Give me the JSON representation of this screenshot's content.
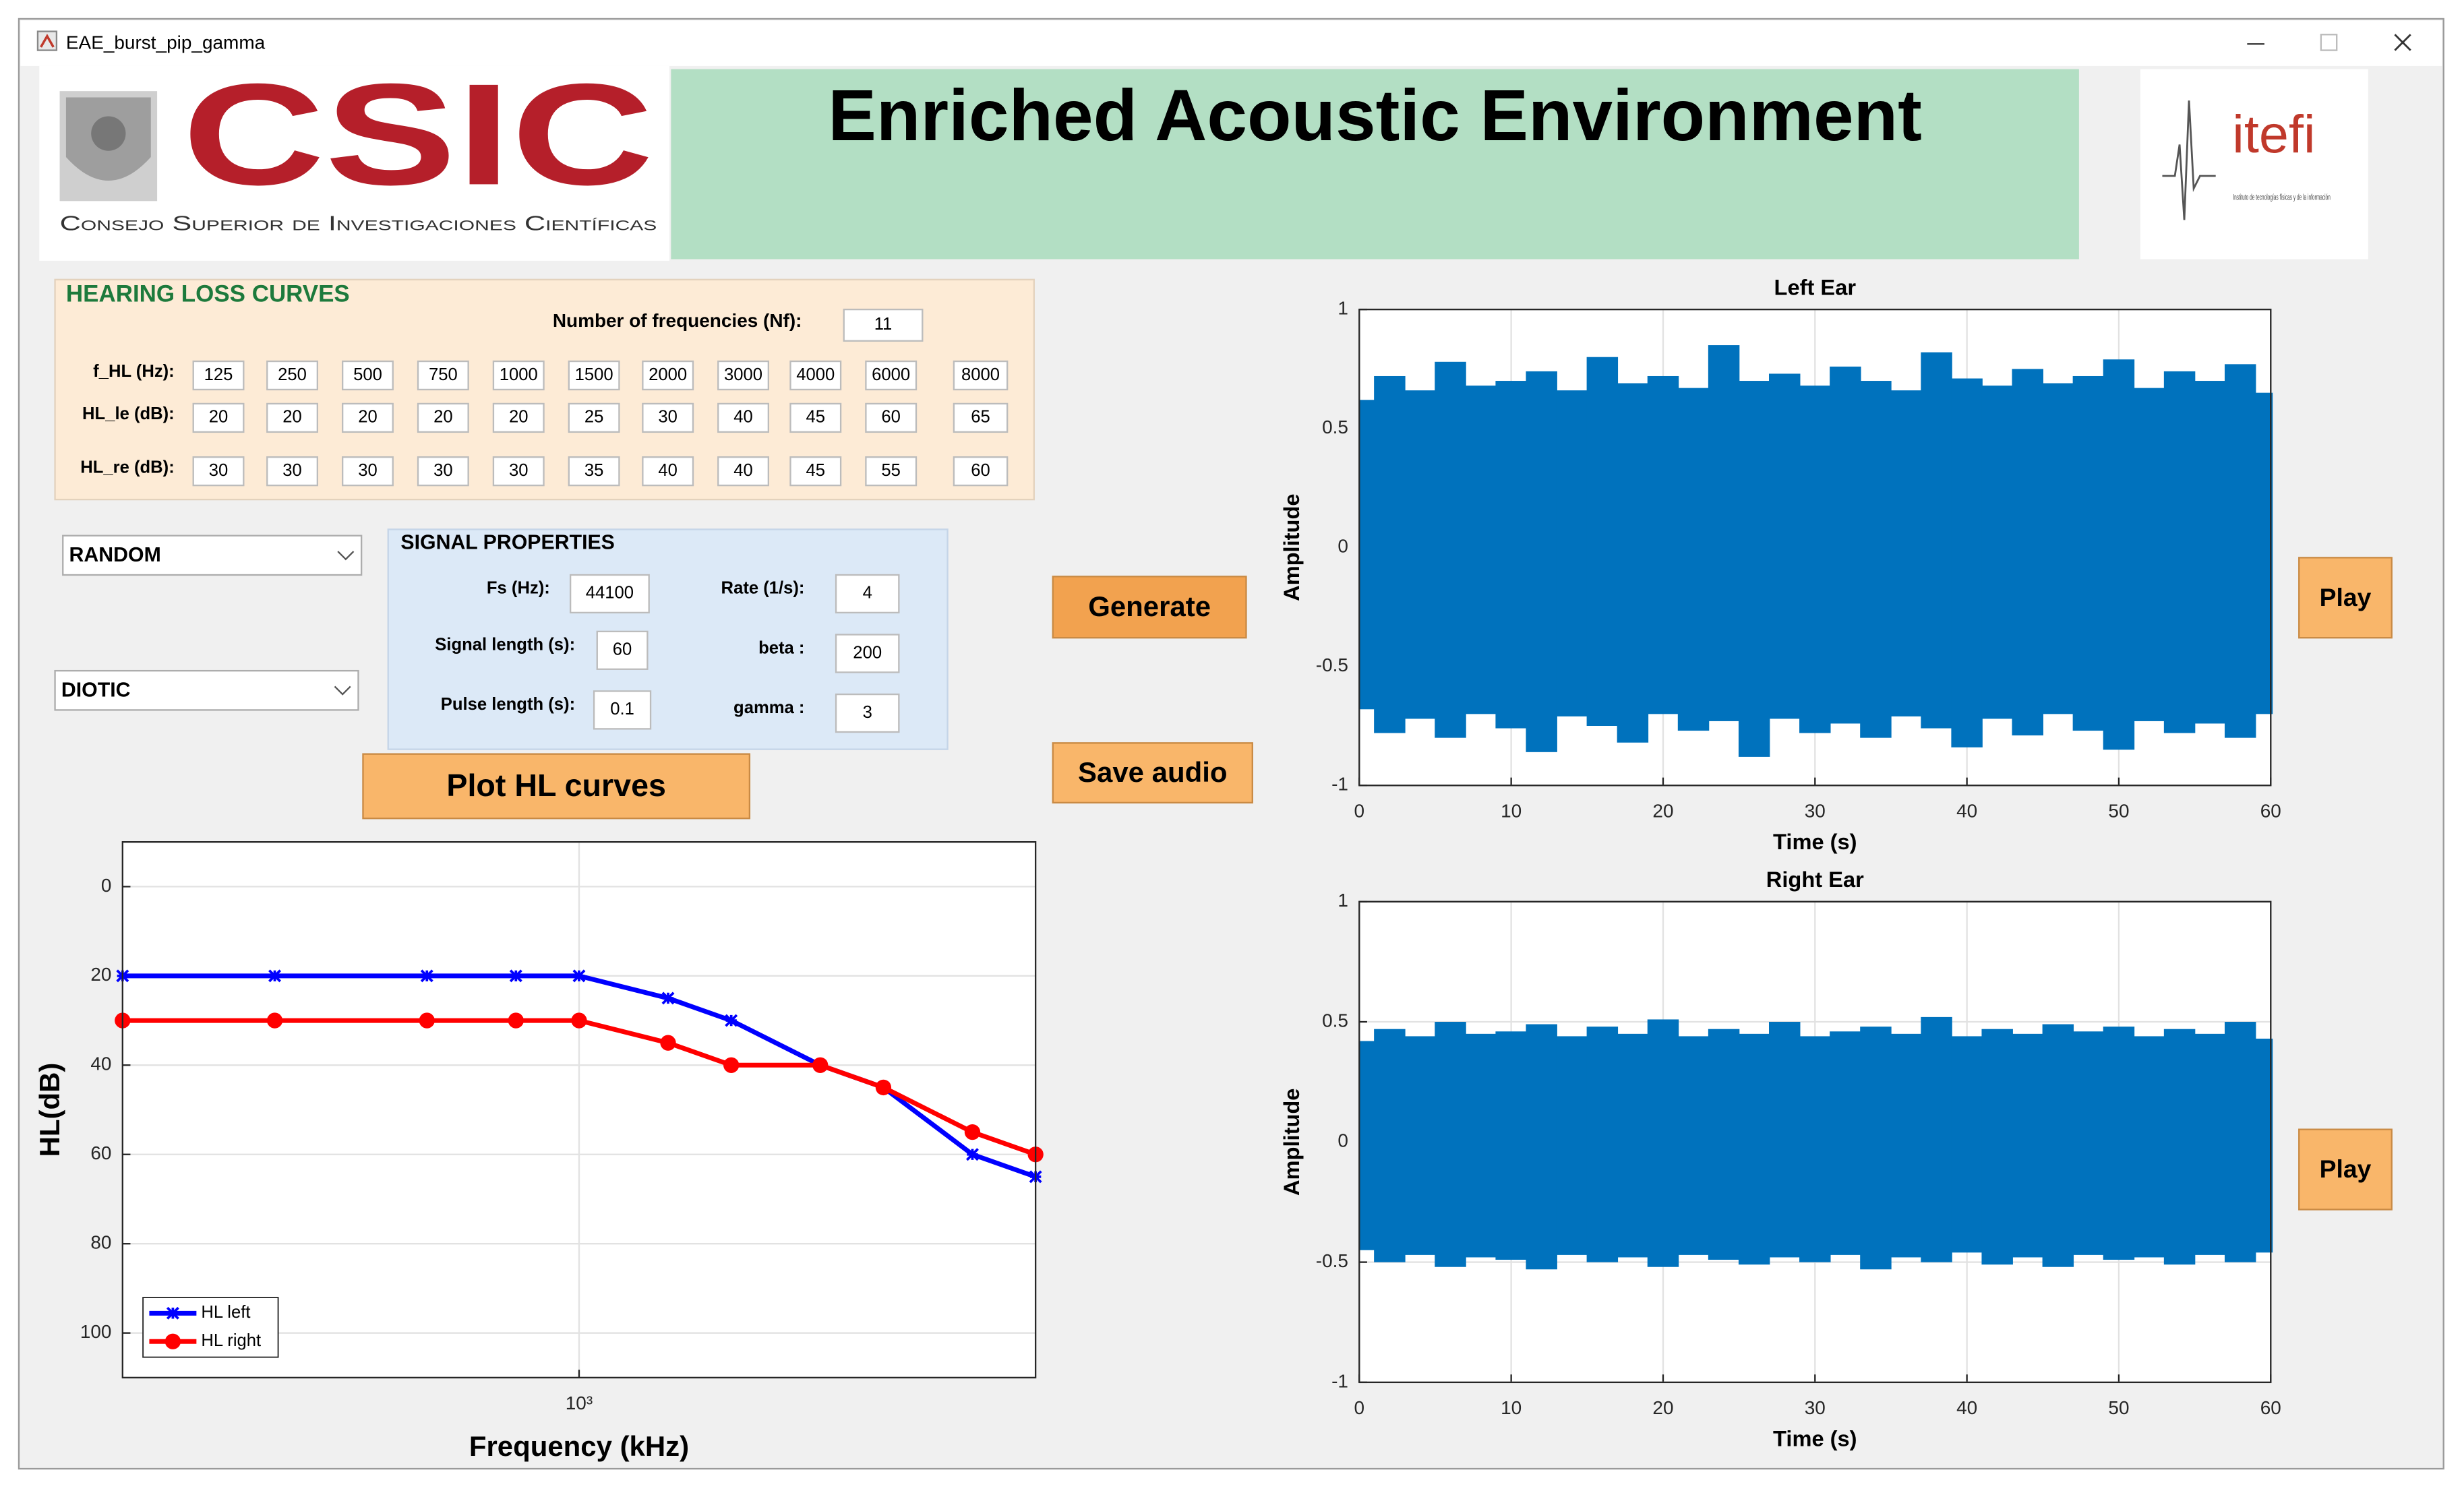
{
  "window": {
    "title": "EAE_burst_pip_gamma"
  },
  "header": {
    "logo_text": "CSIC",
    "logo_subtitle": "Consejo Superior de Investigaciones Científicas",
    "title": "Enriched Acoustic Environment",
    "right_logo": "itefi",
    "right_logo_caption": "Instituto de tecnologías físicas y de la información"
  },
  "hearing_loss": {
    "title": "HEARING LOSS CURVES",
    "nf_label": "Number of frequencies (Nf):",
    "nf": 11,
    "rows": [
      {
        "label": "f_HL (Hz):",
        "values": [
          125,
          250,
          500,
          750,
          1000,
          1500,
          2000,
          3000,
          4000,
          6000,
          8000
        ]
      },
      {
        "label": "HL_le (dB):",
        "values": [
          20,
          20,
          20,
          20,
          20,
          25,
          30,
          40,
          45,
          60,
          65
        ]
      },
      {
        "label": "HL_re (dB):",
        "values": [
          30,
          30,
          30,
          30,
          30,
          35,
          40,
          40,
          45,
          55,
          60
        ]
      }
    ]
  },
  "dropdowns": [
    "RANDOM",
    "DIOTIC"
  ],
  "signal_properties": {
    "title": "SIGNAL PROPERTIES",
    "fields": [
      {
        "label": "Fs (Hz):",
        "value": 44100
      },
      {
        "label": "Signal length (s):",
        "value": 60
      },
      {
        "label": "Pulse length (s):",
        "value": 0.1
      },
      {
        "label": "Rate (1/s):",
        "value": 4
      },
      {
        "label": "beta :",
        "value": 200
      },
      {
        "label": "gamma :",
        "value": 3
      }
    ]
  },
  "buttons": {
    "generate": "Generate",
    "save": "Save audio",
    "plot": "Plot HL curves",
    "play_left": "Play",
    "play_right": "Play"
  },
  "chart_data": [
    {
      "type": "line",
      "xlabel": "Frequency (kHz)",
      "ylabel": "HL(dB)",
      "x": [
        125,
        250,
        500,
        750,
        1000,
        1500,
        2000,
        3000,
        4000,
        6000,
        8000
      ],
      "xscale": "log",
      "xlim": [
        125,
        8000
      ],
      "xticks": [
        {
          "value": 1000,
          "label": "10³"
        }
      ],
      "ylim": [
        -10,
        110
      ],
      "yticks": [
        0,
        20,
        40,
        60,
        80,
        100
      ],
      "y_reversed": true,
      "grid": true,
      "legend": "lower left",
      "series": [
        {
          "name": "HL left",
          "color": "#0000ff",
          "marker": "asterisk",
          "values": [
            20,
            20,
            20,
            20,
            20,
            25,
            30,
            40,
            45,
            60,
            65
          ]
        },
        {
          "name": "HL right",
          "color": "#ff0000",
          "marker": "circle",
          "values": [
            30,
            30,
            30,
            30,
            30,
            35,
            40,
            40,
            45,
            55,
            60
          ]
        }
      ]
    },
    {
      "type": "area",
      "title": "Left Ear",
      "xlabel": "Time (s)",
      "ylabel": "Amplitude",
      "x": [
        0,
        2,
        4,
        6,
        8,
        10,
        12,
        14,
        16,
        18,
        20,
        22,
        24,
        26,
        28,
        30,
        32,
        34,
        36,
        38,
        40,
        42,
        44,
        46,
        48,
        50,
        52,
        54,
        56,
        58,
        60
      ],
      "xlim": [
        0,
        60
      ],
      "xticks": [
        0,
        10,
        20,
        30,
        40,
        50,
        60
      ],
      "ylim": [
        -1,
        1
      ],
      "yticks": [
        -1,
        -0.5,
        0,
        0.5,
        1
      ],
      "grid": true,
      "series": [
        {
          "color": "#0072bd",
          "upper": [
            0.62,
            0.72,
            0.66,
            0.78,
            0.68,
            0.7,
            0.74,
            0.66,
            0.8,
            0.69,
            0.72,
            0.67,
            0.85,
            0.7,
            0.73,
            0.68,
            0.76,
            0.7,
            0.66,
            0.82,
            0.71,
            0.68,
            0.75,
            0.69,
            0.72,
            0.79,
            0.67,
            0.74,
            0.7,
            0.77,
            0.65
          ],
          "lower": [
            -0.68,
            -0.78,
            -0.72,
            -0.8,
            -0.7,
            -0.76,
            -0.86,
            -0.71,
            -0.75,
            -0.82,
            -0.7,
            -0.77,
            -0.73,
            -0.88,
            -0.72,
            -0.78,
            -0.74,
            -0.8,
            -0.71,
            -0.76,
            -0.84,
            -0.72,
            -0.79,
            -0.7,
            -0.77,
            -0.85,
            -0.73,
            -0.78,
            -0.74,
            -0.8,
            -0.7
          ]
        }
      ]
    },
    {
      "type": "area",
      "title": "Right Ear",
      "xlabel": "Time (s)",
      "ylabel": "Amplitude",
      "x": [
        0,
        2,
        4,
        6,
        8,
        10,
        12,
        14,
        16,
        18,
        20,
        22,
        24,
        26,
        28,
        30,
        32,
        34,
        36,
        38,
        40,
        42,
        44,
        46,
        48,
        50,
        52,
        54,
        56,
        58,
        60
      ],
      "xlim": [
        0,
        60
      ],
      "xticks": [
        0,
        10,
        20,
        30,
        40,
        50,
        60
      ],
      "ylim": [
        -1,
        1
      ],
      "yticks": [
        -1,
        -0.5,
        0,
        0.5,
        1
      ],
      "grid": true,
      "series": [
        {
          "color": "#0072bd",
          "upper": [
            0.42,
            0.47,
            0.44,
            0.5,
            0.45,
            0.46,
            0.49,
            0.44,
            0.48,
            0.45,
            0.51,
            0.44,
            0.47,
            0.45,
            0.5,
            0.44,
            0.46,
            0.48,
            0.45,
            0.52,
            0.44,
            0.47,
            0.45,
            0.49,
            0.46,
            0.48,
            0.44,
            0.47,
            0.45,
            0.5,
            0.43
          ],
          "lower": [
            -0.45,
            -0.5,
            -0.47,
            -0.52,
            -0.48,
            -0.49,
            -0.53,
            -0.47,
            -0.5,
            -0.48,
            -0.52,
            -0.47,
            -0.49,
            -0.51,
            -0.48,
            -0.5,
            -0.47,
            -0.53,
            -0.48,
            -0.5,
            -0.46,
            -0.51,
            -0.48,
            -0.52,
            -0.47,
            -0.49,
            -0.48,
            -0.51,
            -0.47,
            -0.5,
            -0.46
          ]
        }
      ]
    }
  ]
}
